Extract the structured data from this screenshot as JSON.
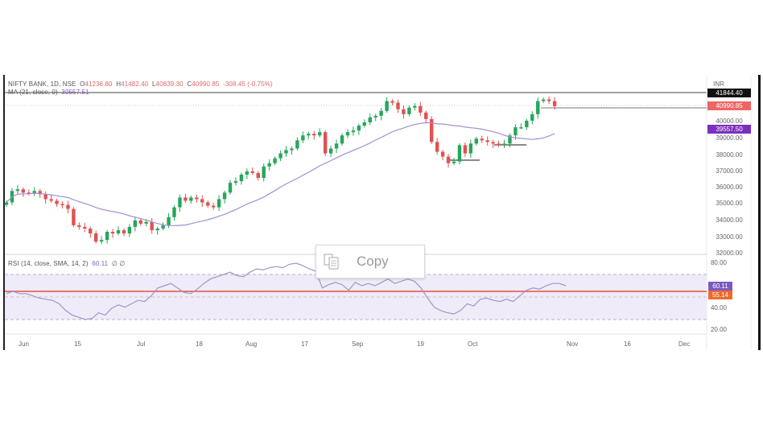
{
  "header": {
    "symbol": "NIFTY BANK, 1D, NSE",
    "open_label": "O",
    "open": "41236.80",
    "high_label": "H",
    "high": "41482.40",
    "low_label": "L",
    "low": "40839.30",
    "close_label": "C",
    "close": "40990.85",
    "change": "-308.45 (-0.75%)",
    "ma_label": "MA (21, close, 0)",
    "ma_value": "39557.51",
    "rsi_label": "RSI (14, close, SMA, 14, 2)",
    "rsi_value": "60.11",
    "rsi_icons": "∅ ∅"
  },
  "price_axis": {
    "currency": "INR",
    "ticks": [
      "40000.00",
      "39000.00",
      "38000.00",
      "37000.00",
      "36000.00",
      "35000.00",
      "34000.00",
      "33000.00",
      "32000.00"
    ],
    "tags": {
      "high": "41844.40",
      "last": "40990.85",
      "ma": "39557.50"
    }
  },
  "rsi_axis": {
    "ticks": [
      "80.00",
      "40.00",
      "20.00"
    ],
    "tags": {
      "rsi": "60.11",
      "rsi_ma": "55.14"
    }
  },
  "time_axis": {
    "labels": [
      "Jun",
      "15",
      "Jul",
      "18",
      "Aug",
      "17",
      "Sep",
      "19",
      "Oct",
      "Nov",
      "16",
      "Dec"
    ]
  },
  "popup": {
    "copy_label": "Copy"
  },
  "colors": {
    "up": "#26a65b",
    "down": "#e05252",
    "ma": "#9b7fc8",
    "rsi": "#9a8cc4",
    "rsi_ma": "#e0685a",
    "rsi_band": "#efeaf8",
    "last_tag": "#f06464",
    "ma_tag": "#7b2fbe",
    "rsi_tag": "#7e57c2",
    "rsi_ma_tag": "#f06a2a"
  },
  "chart_data": {
    "type": "candlestick",
    "title": "NIFTY BANK, 1D, NSE",
    "xlabel": "",
    "ylabel": "INR",
    "ylim": [
      32000,
      42000
    ],
    "x_ticks": [
      "Jun",
      "15",
      "Jul",
      "18",
      "Aug",
      "17",
      "Sep",
      "19",
      "Oct",
      "Nov",
      "16",
      "Dec"
    ],
    "last_ohlc": {
      "open": 41236.8,
      "high": 41482.4,
      "low": 40839.3,
      "close": 40990.85,
      "change": -308.45,
      "change_pct": -0.75
    },
    "ma": {
      "name": "MA (21, close, 0)",
      "last": 39557.51
    },
    "approx_close_series": [
      35100,
      35800,
      35900,
      35700,
      35650,
      35800,
      35600,
      35300,
      35200,
      35000,
      34950,
      34700,
      33700,
      33600,
      33500,
      33200,
      32700,
      32800,
      33300,
      33200,
      33400,
      33200,
      33600,
      34000,
      33800,
      33900,
      33400,
      33500,
      33700,
      34200,
      34800,
      35400,
      35200,
      35400,
      35300,
      35100,
      34900,
      34800,
      35300,
      35700,
      36300,
      36400,
      36800,
      37000,
      36900,
      36600,
      37300,
      37500,
      37800,
      38100,
      38300,
      38400,
      38900,
      39200,
      39300,
      39200,
      39400,
      38100,
      38400,
      38700,
      39200,
      39400,
      39500,
      39800,
      40000,
      40300,
      40400,
      40700,
      41300,
      41200,
      40800,
      40500,
      40900,
      41000,
      40600,
      40200,
      38800,
      38200,
      37900,
      37500,
      37600,
      38600,
      38100,
      38700,
      39000,
      38900,
      38800,
      38700,
      38600,
      38700,
      39200,
      39700,
      39700,
      40100,
      40500,
      41300,
      41400,
      41300,
      40990
    ],
    "rsi": {
      "name": "RSI (14, close, SMA, 14, 2)",
      "last": 60.11,
      "ma_last": 55.14,
      "bands": [
        70,
        50,
        30
      ],
      "ylim": [
        10,
        90
      ],
      "approx_series": [
        53,
        55,
        53,
        53,
        51,
        49,
        48,
        47,
        44,
        38,
        34,
        32,
        30,
        31,
        36,
        34,
        40,
        43,
        41,
        44,
        47,
        46,
        51,
        58,
        60,
        62,
        58,
        54,
        53,
        57,
        62,
        66,
        68,
        70,
        72,
        69,
        68,
        72,
        75,
        74,
        76,
        77,
        76,
        79,
        80,
        78,
        75,
        73,
        58,
        61,
        63,
        61,
        56,
        63,
        60,
        62,
        60,
        63,
        66,
        62,
        64,
        66,
        64,
        58,
        49,
        41,
        38,
        36,
        35,
        38,
        44,
        42,
        48,
        49,
        47,
        46,
        48,
        46,
        51,
        56,
        58,
        57,
        60,
        62,
        62,
        60
      ]
    }
  }
}
